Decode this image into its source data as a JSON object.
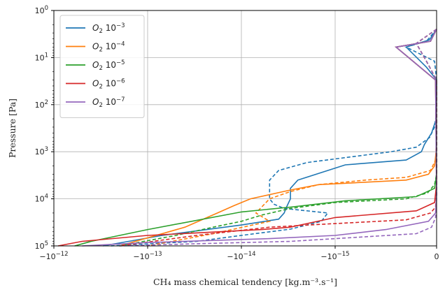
{
  "chart_data": {
    "type": "line",
    "xlabel": "$CH_4$ mass chemical tendency [$kg.m^{-3}.s^{-1}$]",
    "xlabel_display": "CH₄ mass chemical tendency [kg.m⁻³.s⁻¹]",
    "ylabel": "Pressure [Pa]",
    "x_scale": "symlog (negative)",
    "y_scale": "log (inverted)",
    "xlim": [
      -1e-12,
      0
    ],
    "ylim": [
      100000.0,
      1
    ],
    "x_ticks": [
      {
        "value": -1e-12,
        "label": "−10",
        "exp": "−12"
      },
      {
        "value": -1e-13,
        "label": "−10",
        "exp": "−13"
      },
      {
        "value": -1e-14,
        "label": "−10",
        "exp": "−14"
      },
      {
        "value": -1e-15,
        "label": "−10",
        "exp": "−15"
      },
      {
        "value": 0,
        "label": "0",
        "exp": ""
      }
    ],
    "y_ticks": [
      {
        "value": 1,
        "label": "10",
        "exp": "0"
      },
      {
        "value": 10,
        "label": "10",
        "exp": "1"
      },
      {
        "value": 100,
        "label": "10",
        "exp": "2"
      },
      {
        "value": 1000,
        "label": "10",
        "exp": "3"
      },
      {
        "value": 10000,
        "label": "10",
        "exp": "4"
      },
      {
        "value": 100000,
        "label": "10",
        "exp": "5"
      }
    ],
    "grid": true,
    "legend_position": "top-left",
    "line_styles_note": "solid and dashed variants per series",
    "series": [
      {
        "name": "O2 10^-3",
        "legend_base": "O",
        "legend_sub": "2",
        "legend_pow": "10",
        "legend_exp": "−3",
        "color": "#1f77b4",
        "solid": [
          [
            -1e-20,
            2.5
          ],
          [
            -7e-17,
            4.2
          ],
          [
            -3e-16,
            6
          ],
          [
            -1e-16,
            16
          ],
          [
            -1e-17,
            28
          ],
          [
            -1e-20,
            30
          ],
          [
            -3e-18,
            200
          ],
          [
            -5e-17,
            400
          ],
          [
            -1.2e-16,
            700
          ],
          [
            -1.5e-16,
            1000
          ],
          [
            -3e-16,
            1500
          ],
          [
            -9e-16,
            1900
          ],
          [
            -2.5e-15,
            4000
          ],
          [
            -3e-15,
            6000
          ],
          [
            -3e-15,
            10000
          ],
          [
            -3.3e-15,
            15000
          ],
          [
            -3.5e-15,
            20000
          ],
          [
            -4e-15,
            27000
          ],
          [
            -1e-14,
            36000
          ],
          [
            -7e-14,
            60000
          ],
          [
            -3e-13,
            100000
          ]
        ],
        "dashed": [
          [
            -1e-20,
            2.5
          ],
          [
            -1e-16,
            4.5
          ],
          [
            -3e-16,
            6
          ],
          [
            -2e-17,
            12
          ],
          [
            -1e-20,
            30
          ],
          [
            -2e-18,
            150
          ],
          [
            -2e-17,
            300
          ],
          [
            -7e-17,
            500
          ],
          [
            -2e-16,
            800
          ],
          [
            -4.5e-16,
            1000
          ],
          [
            -2e-15,
            1700
          ],
          [
            -4e-15,
            2500
          ],
          [
            -5e-15,
            4000
          ],
          [
            -5e-15,
            10000
          ],
          [
            -4.5e-15,
            13000
          ],
          [
            -3.5e-15,
            16000
          ],
          [
            -1.2e-15,
            20000
          ],
          [
            -1.4e-15,
            30000
          ],
          [
            -3e-15,
            44000
          ],
          [
            -1e-14,
            60000
          ],
          [
            -3e-14,
            80000
          ],
          [
            -2.5e-13,
            100000
          ]
        ]
      },
      {
        "name": "O2 10^-4",
        "legend_base": "O",
        "legend_sub": "2",
        "legend_pow": "10",
        "legend_exp": "−4",
        "color": "#ff7f0e",
        "solid": [
          [
            -1e-20,
            2.5
          ],
          [
            -6e-17,
            4.5
          ],
          [
            -4e-16,
            6
          ],
          [
            -1e-17,
            30
          ],
          [
            -2e-18,
            300
          ],
          [
            -5e-18,
            1000
          ],
          [
            -2e-17,
            2000
          ],
          [
            -8e-17,
            3000
          ],
          [
            -3e-16,
            4000
          ],
          [
            -1.5e-15,
            5000
          ],
          [
            -3e-15,
            6500
          ],
          [
            -8e-15,
            10000
          ],
          [
            -1.2e-14,
            14000
          ],
          [
            -1.8e-14,
            20000
          ],
          [
            -4e-14,
            40000
          ],
          [
            -2e-13,
            100000
          ]
        ],
        "dashed": [
          [
            -1e-20,
            2.5
          ],
          [
            -2e-16,
            5
          ],
          [
            -1e-16,
            12
          ],
          [
            -1e-20,
            30
          ],
          [
            -1e-18,
            500
          ],
          [
            -1e-17,
            1500
          ],
          [
            -6e-17,
            2500
          ],
          [
            -3e-16,
            3500
          ],
          [
            -7e-16,
            4000
          ],
          [
            -1.5e-15,
            5000
          ],
          [
            -3e-15,
            7000
          ],
          [
            -5e-15,
            10000
          ],
          [
            -7e-15,
            20000
          ],
          [
            -5e-15,
            30000
          ],
          [
            -2e-14,
            55000
          ],
          [
            -1e-13,
            100000
          ]
        ]
      },
      {
        "name": "O2 10^-5",
        "legend_base": "O",
        "legend_sub": "2",
        "legend_pow": "10",
        "legend_exp": "−5",
        "color": "#2ca02c",
        "solid": [
          [
            -1e-20,
            2.5
          ],
          [
            -6e-17,
            4.5
          ],
          [
            -4e-16,
            6
          ],
          [
            -1e-17,
            30
          ],
          [
            -1e-18,
            3000
          ],
          [
            -2e-17,
            6000
          ],
          [
            -2e-16,
            9000
          ],
          [
            -9e-16,
            11000
          ],
          [
            -3e-15,
            15000
          ],
          [
            -1e-14,
            19000
          ],
          [
            -1e-13,
            45000
          ],
          [
            -4e-13,
            80000
          ],
          [
            -6e-13,
            100000
          ]
        ],
        "dashed": [
          [
            -1e-20,
            2.5
          ],
          [
            -2e-16,
            5
          ],
          [
            -1e-16,
            12
          ],
          [
            -1e-20,
            30
          ],
          [
            -1e-18,
            3000
          ],
          [
            -2e-17,
            5000
          ],
          [
            -9e-17,
            7500
          ],
          [
            -3e-16,
            10000
          ],
          [
            -1e-15,
            12000
          ],
          [
            -3e-15,
            16000
          ],
          [
            -6e-15,
            22000
          ],
          [
            -1e-14,
            30000
          ],
          [
            -2e-14,
            40000
          ],
          [
            -5e-14,
            60000
          ],
          [
            -2e-13,
            100000
          ]
        ]
      },
      {
        "name": "O2 10^-6",
        "legend_base": "O",
        "legend_sub": "2",
        "legend_pow": "10",
        "legend_exp": "−6",
        "color": "#d62728",
        "solid": [
          [
            -1e-20,
            2.5
          ],
          [
            -6e-17,
            4.5
          ],
          [
            -4e-16,
            6
          ],
          [
            -1e-17,
            30
          ],
          [
            -1e-18,
            5000
          ],
          [
            -2e-17,
            12000
          ],
          [
            -2e-16,
            18000
          ],
          [
            -1e-15,
            25000
          ],
          [
            -3e-15,
            40000
          ],
          [
            -6e-15,
            45000
          ],
          [
            -1e-13,
            60000
          ],
          [
            -5e-13,
            80000
          ],
          [
            -9e-13,
            100000
          ]
        ],
        "dashed": [
          [
            -1e-20,
            2.5
          ],
          [
            -2e-16,
            5
          ],
          [
            -1e-16,
            12
          ],
          [
            -1e-20,
            30
          ],
          [
            -1e-18,
            8000
          ],
          [
            -1e-17,
            15000
          ],
          [
            -6e-17,
            20000
          ],
          [
            -3e-16,
            28000
          ],
          [
            -1.5e-15,
            35000
          ],
          [
            -5e-15,
            40000
          ],
          [
            -3e-14,
            60000
          ],
          [
            -2e-13,
            100000
          ]
        ]
      },
      {
        "name": "O2 10^-7",
        "legend_base": "O",
        "legend_sub": "2",
        "legend_pow": "10",
        "legend_exp": "−7",
        "color": "#9467bd",
        "solid": [
          [
            -1e-20,
            2.5
          ],
          [
            -6e-17,
            4.5
          ],
          [
            -4e-16,
            6
          ],
          [
            -1e-17,
            30
          ],
          [
            -1e-18,
            8000
          ],
          [
            -1e-17,
            20000
          ],
          [
            -8e-17,
            30000
          ],
          [
            -5e-16,
            45000
          ],
          [
            -1e-15,
            60000
          ],
          [
            -5e-15,
            70000
          ],
          [
            -1e-13,
            85000
          ],
          [
            -5e-13,
            100000
          ]
        ],
        "dashed": [
          [
            -1e-20,
            2.5
          ],
          [
            -2e-16,
            5
          ],
          [
            -1e-16,
            12
          ],
          [
            -1e-20,
            30
          ],
          [
            -1e-18,
            10000
          ],
          [
            -1e-17,
            25000
          ],
          [
            -5e-17,
            40000
          ],
          [
            -2e-16,
            55000
          ],
          [
            -1e-15,
            70000
          ],
          [
            -3e-15,
            80000
          ],
          [
            -3e-14,
            90000
          ],
          [
            -2e-13,
            100000
          ]
        ]
      }
    ]
  }
}
